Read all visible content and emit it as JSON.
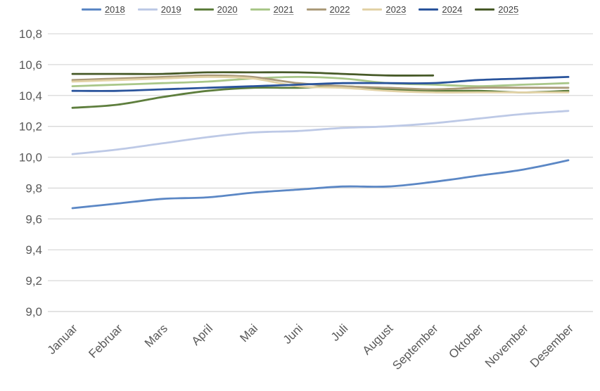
{
  "chart_data": {
    "type": "line",
    "title": "",
    "xlabel": "",
    "ylabel": "",
    "legend_position": "top",
    "grid": "horizontal-only",
    "grid_color": "#D9D9D9",
    "axis_line_color": "#D2D2D2",
    "tick_text_color": "#595959",
    "legend_text_color": "#3f3f3f",
    "categories": [
      "Januar",
      "Februar",
      "Mars",
      "April",
      "Mai",
      "Juni",
      "Juli",
      "August",
      "September",
      "Oktober",
      "November",
      "Desember"
    ],
    "y_axis": {
      "min": 9.0,
      "max": 10.8,
      "step": 0.2,
      "ticks": [
        {
          "value": 10.8,
          "label": "10,8"
        },
        {
          "value": 10.6,
          "label": "10,6"
        },
        {
          "value": 10.4,
          "label": "10,4"
        },
        {
          "value": 10.2,
          "label": "10,2"
        },
        {
          "value": 10.0,
          "label": "10,0"
        },
        {
          "value": 9.8,
          "label": "9,8"
        },
        {
          "value": 9.6,
          "label": "9,6"
        },
        {
          "value": 9.4,
          "label": "9,4"
        },
        {
          "value": 9.2,
          "label": "9,2"
        },
        {
          "value": 9.0,
          "label": "9,0"
        }
      ]
    },
    "series": [
      {
        "name": "2018",
        "color": "#5B87C5",
        "values": [
          9.67,
          9.7,
          9.73,
          9.74,
          9.77,
          9.79,
          9.81,
          9.81,
          9.84,
          9.88,
          9.92,
          9.98
        ]
      },
      {
        "name": "2019",
        "color": "#BDC9E6",
        "values": [
          10.02,
          10.05,
          10.09,
          10.13,
          10.16,
          10.17,
          10.19,
          10.2,
          10.22,
          10.25,
          10.28,
          10.3
        ]
      },
      {
        "name": "2020",
        "color": "#5E7E3D",
        "values": [
          10.32,
          10.34,
          10.39,
          10.43,
          10.45,
          10.45,
          10.46,
          10.44,
          10.43,
          10.43,
          10.42,
          10.43
        ]
      },
      {
        "name": "2021",
        "color": "#A9C789",
        "values": [
          10.46,
          10.47,
          10.48,
          10.49,
          10.51,
          10.52,
          10.51,
          10.48,
          10.47,
          10.46,
          10.47,
          10.48
        ]
      },
      {
        "name": "2022",
        "color": "#AB9B7A",
        "values": [
          10.5,
          10.51,
          10.52,
          10.53,
          10.52,
          10.48,
          10.46,
          10.45,
          10.44,
          10.45,
          10.45,
          10.45
        ]
      },
      {
        "name": "2023",
        "color": "#E2D2A6",
        "values": [
          10.49,
          10.5,
          10.51,
          10.52,
          10.51,
          10.46,
          10.45,
          10.43,
          10.42,
          10.42,
          10.42,
          10.42
        ]
      },
      {
        "name": "2024",
        "color": "#2A549C",
        "values": [
          10.43,
          10.43,
          10.44,
          10.45,
          10.46,
          10.47,
          10.48,
          10.48,
          10.48,
          10.5,
          10.51,
          10.52
        ]
      },
      {
        "name": "2025",
        "color": "#475A28",
        "values": [
          10.54,
          10.54,
          10.54,
          10.55,
          10.55,
          10.55,
          10.54,
          10.53,
          10.53,
          null,
          null,
          null
        ]
      }
    ]
  }
}
